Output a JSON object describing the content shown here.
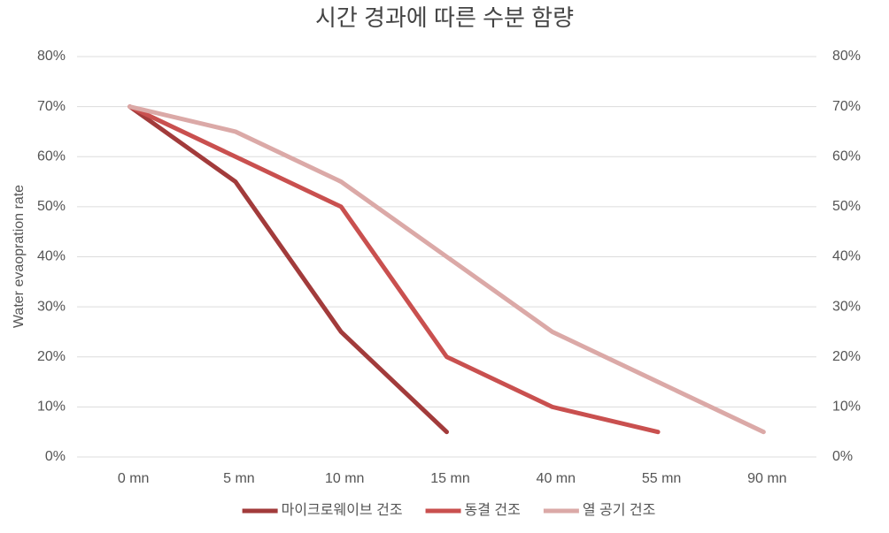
{
  "chart_data": {
    "type": "line",
    "title": "시간 경과에 따른 수분 함량",
    "y_label": "Water evaopration rate",
    "categories": [
      "0 mn",
      "5 mn",
      "10 mn",
      "15 mn",
      "40 mn",
      "55 mn",
      "90 mn"
    ],
    "series": [
      {
        "name": "마이크로웨이브 건조",
        "color": "#a23b3b",
        "values": [
          70,
          55,
          25,
          5,
          null,
          null,
          null
        ]
      },
      {
        "name": "동결 건조",
        "color": "#c9504f",
        "values": [
          70,
          60,
          50,
          20,
          10,
          5,
          null
        ]
      },
      {
        "name": "열 공기 건조",
        "color": "#dba9a7",
        "values": [
          70,
          65,
          55,
          40,
          25,
          15,
          5
        ]
      }
    ],
    "ylim": [
      0,
      80
    ],
    "yticks": [
      {
        "value": 0,
        "label": "0%"
      },
      {
        "value": 10,
        "label": "10%"
      },
      {
        "value": 20,
        "label": "20%"
      },
      {
        "value": 30,
        "label": "30%"
      },
      {
        "value": 40,
        "label": "40%"
      },
      {
        "value": 50,
        "label": "50%"
      },
      {
        "value": 60,
        "label": "60%"
      },
      {
        "value": 70,
        "label": "70%"
      },
      {
        "value": 80,
        "label": "80%"
      }
    ],
    "y2lim": [
      0,
      80
    ],
    "y2ticks": [
      {
        "value": 0,
        "label": "0%"
      },
      {
        "value": 10,
        "label": "10%"
      },
      {
        "value": 20,
        "label": "20%"
      },
      {
        "value": 30,
        "label": "30%"
      },
      {
        "value": 40,
        "label": "40%"
      },
      {
        "value": 50,
        "label": "50%"
      },
      {
        "value": 60,
        "label": "60%"
      },
      {
        "value": 70,
        "label": "70%"
      },
      {
        "value": 80,
        "label": "80%"
      }
    ],
    "grid": true,
    "legend": "bottom"
  }
}
